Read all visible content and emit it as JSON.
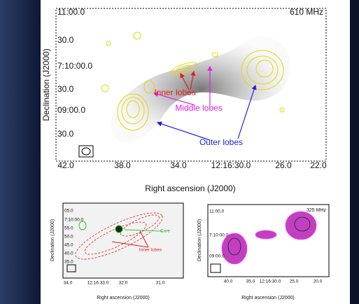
{
  "main_panel": {
    "frequency": "610 MHz",
    "y_ticks": [
      "11:00.0",
      "30.0",
      "7:10:00.0",
      "30.0",
      "09:00.0",
      "30.0"
    ],
    "x_ticks": [
      "42.0",
      "38.0",
      "34.0",
      "12:16:30.0",
      "26.0",
      "22.0"
    ],
    "y_label": "Declination (J2000)",
    "x_label": "Right ascension (J2000)",
    "annotations": [
      "Inner lobes",
      "Middle lobes",
      "Outer lobes"
    ]
  },
  "left_panel": {
    "y_ticks": [
      "05.0",
      "7:10:00.0",
      "55.0",
      "50.0",
      "45.0",
      "40.0",
      "35.0"
    ],
    "x_ticks": [
      "34.0",
      "12:16:33.0",
      "32.0",
      "31.0"
    ],
    "y_label": "Declination (J2000)",
    "x_label": "Right ascension (J2000)",
    "annotations": [
      "Core",
      "Inner lobes"
    ]
  },
  "right_panel": {
    "frequency": "325 MHz",
    "y_ticks": [
      "11:00.0",
      "7:10:00.0",
      "09:00.0"
    ],
    "x_ticks": [
      "40.0",
      "35.0",
      "12:16:30.0",
      "25.0",
      "20.0"
    ],
    "y_label": "Declination (J2000)",
    "x_label": "Right ascension (J2000)"
  }
}
